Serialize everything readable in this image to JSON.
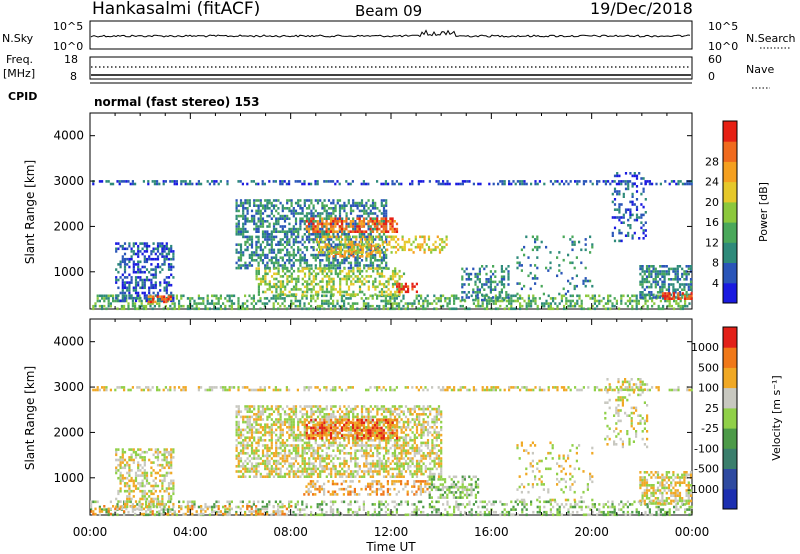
{
  "header": {
    "site": "Hankasalmi (fitACF)",
    "beam": "Beam 09",
    "date": "19/Dec/2018"
  },
  "control_panels": {
    "nsky_label": "N.Sky",
    "nsky_ticks": [
      "10^5",
      "10^0"
    ],
    "nsearch_label": "N.Search",
    "nsearch_ticks": [
      "10^5",
      "10^0"
    ],
    "freq_label_1": "Freq.",
    "freq_label_2": "[MHz]",
    "freq_ticks": [
      "18",
      "8"
    ],
    "nave_label": "Nave",
    "nave_ticks": [
      "60",
      "0"
    ],
    "cpid_label": "CPID",
    "cpid_text": "normal (fast stereo) 153"
  },
  "chart_data": [
    {
      "type": "heatmap",
      "name": "power",
      "ylabel": "Slant Range [km]",
      "ylim": [
        180,
        4500
      ],
      "yticks": [
        1000,
        2000,
        3000,
        4000
      ],
      "xlim": [
        0,
        24
      ],
      "colorbar": {
        "label": "Power [dB]",
        "ticks": [
          "4",
          "8",
          "12",
          "16",
          "20",
          "24",
          "28"
        ],
        "colors": [
          "#1a1ae0",
          "#2a55b8",
          "#2e8a7a",
          "#4aa85a",
          "#8cc83c",
          "#e6c82a",
          "#f5a020",
          "#f06a1e",
          "#e62014"
        ]
      },
      "regions": [
        {
          "x": [
            0.0,
            24.0
          ],
          "y": [
            200,
            500
          ],
          "level": 3,
          "density": 0.45
        },
        {
          "x": [
            1.0,
            3.3
          ],
          "y": [
            350,
            1650
          ],
          "level": 1,
          "density": 0.5
        },
        {
          "x": [
            2.3,
            3.2
          ],
          "y": [
            320,
            480
          ],
          "level": 7,
          "density": 0.6
        },
        {
          "x": [
            5.8,
            11.8
          ],
          "y": [
            1100,
            2600
          ],
          "level": 2,
          "density": 0.55
        },
        {
          "x": [
            6.6,
            12.5
          ],
          "y": [
            500,
            1100
          ],
          "level": 4,
          "density": 0.5
        },
        {
          "x": [
            8.6,
            12.2
          ],
          "y": [
            1900,
            2200
          ],
          "level": 7,
          "density": 0.6
        },
        {
          "x": [
            9.5,
            11.6
          ],
          "y": [
            1350,
            1600
          ],
          "level": 6,
          "density": 0.5
        },
        {
          "x": [
            9.0,
            14.2
          ],
          "y": [
            1400,
            1800
          ],
          "level": 5,
          "density": 0.4
        },
        {
          "x": [
            12.2,
            13.0
          ],
          "y": [
            580,
            760
          ],
          "level": 8,
          "density": 0.6
        },
        {
          "x": [
            14.8,
            16.7
          ],
          "y": [
            350,
            1150
          ],
          "level": 2,
          "density": 0.4
        },
        {
          "x": [
            17.0,
            20.0
          ],
          "y": [
            500,
            1800
          ],
          "level": 2,
          "density": 0.12
        },
        {
          "x": [
            20.8,
            22.2
          ],
          "y": [
            1700,
            3200
          ],
          "level": 1,
          "density": 0.25
        },
        {
          "x": [
            21.9,
            24.0
          ],
          "y": [
            450,
            1150
          ],
          "level": 2,
          "density": 0.6
        },
        {
          "x": [
            22.8,
            24.0
          ],
          "y": [
            380,
            550
          ],
          "level": 8,
          "density": 0.7
        },
        {
          "x": [
            0.0,
            24.0
          ],
          "y": [
            2960,
            3020
          ],
          "level": 1,
          "density": 0.45
        }
      ]
    },
    {
      "type": "heatmap",
      "name": "velocity",
      "ylabel": "Slant Range [km]",
      "xlabel": "Time UT",
      "ylim": [
        180,
        4500
      ],
      "yticks": [
        1000,
        2000,
        3000,
        4000
      ],
      "xlim": [
        0,
        24
      ],
      "xticks": [
        "00:00",
        "04:00",
        "08:00",
        "12:00",
        "16:00",
        "20:00",
        "00:00"
      ],
      "colorbar": {
        "label": "Velocity [m s⁻¹]",
        "ticks": [
          "1000",
          "500",
          "100",
          "25",
          "-25",
          "-100",
          "-500",
          "-1000"
        ],
        "colors": [
          "#1c2fb0",
          "#2e4aa0",
          "#3a7e6c",
          "#4c9a48",
          "#90d048",
          "#c8c8c0",
          "#f0a824",
          "#f07818",
          "#e22018"
        ]
      },
      "regions": [
        {
          "x": [
            0.0,
            24.0
          ],
          "y": [
            200,
            500
          ],
          "level": 4,
          "density": 0.35
        },
        {
          "x": [
            0.0,
            8.0
          ],
          "y": [
            200,
            400
          ],
          "level": 6,
          "density": 0.35
        },
        {
          "x": [
            1.0,
            3.3
          ],
          "y": [
            350,
            1650
          ],
          "level": 5,
          "density": 0.45
        },
        {
          "x": [
            5.8,
            14.0
          ],
          "y": [
            1000,
            2600
          ],
          "level": 5,
          "density": 0.6
        },
        {
          "x": [
            8.6,
            12.2
          ],
          "y": [
            1850,
            2300
          ],
          "level": 7,
          "density": 0.65
        },
        {
          "x": [
            8.5,
            13.5
          ],
          "y": [
            650,
            950
          ],
          "level": 6,
          "density": 0.45
        },
        {
          "x": [
            13.5,
            15.5
          ],
          "y": [
            550,
            1050
          ],
          "level": 4,
          "density": 0.5
        },
        {
          "x": [
            17.0,
            20.0
          ],
          "y": [
            500,
            1800
          ],
          "level": 5,
          "density": 0.15
        },
        {
          "x": [
            20.5,
            22.2
          ],
          "y": [
            1700,
            3200
          ],
          "level": 5,
          "density": 0.25
        },
        {
          "x": [
            21.9,
            24.0
          ],
          "y": [
            450,
            1150
          ],
          "level": 5,
          "density": 0.6
        },
        {
          "x": [
            0.0,
            24.0
          ],
          "y": [
            2960,
            3020
          ],
          "level": 5,
          "density": 0.45
        }
      ]
    }
  ]
}
